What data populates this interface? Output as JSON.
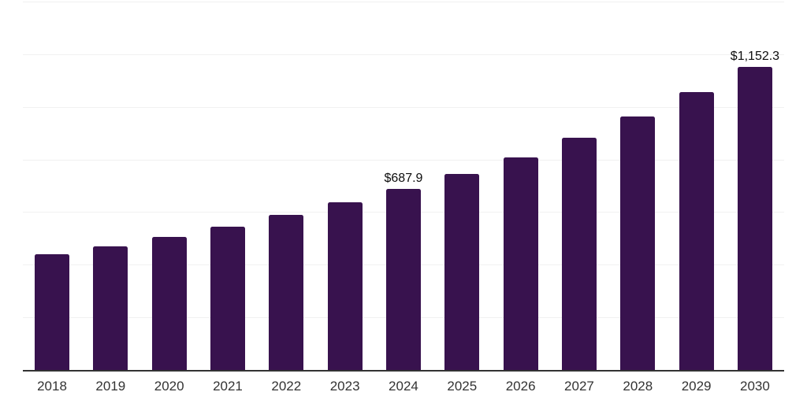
{
  "chart_data": {
    "type": "bar",
    "title": "",
    "xlabel": "",
    "ylabel": "",
    "categories": [
      "2018",
      "2019",
      "2020",
      "2021",
      "2022",
      "2023",
      "2024",
      "2025",
      "2026",
      "2027",
      "2028",
      "2029",
      "2030"
    ],
    "values": [
      441,
      471,
      507,
      543,
      588,
      637,
      687.9,
      744,
      809,
      882,
      963,
      1056,
      1152.3
    ],
    "data_labels": [
      "",
      "",
      "",
      "",
      "",
      "",
      "$687.9",
      "",
      "",
      "",
      "",
      "",
      "$1,152.3"
    ],
    "ylim": [
      0,
      1400
    ],
    "ytick_step": 200,
    "grid": true,
    "yaxis_tick_labels_visible": false,
    "legend_position": "none",
    "colors": {
      "bar": "#38124e",
      "grid": "#f1f1f1",
      "axis": "#333333",
      "tick_label": "#333333",
      "data_label": "#0d0d0d",
      "background": "#ffffff"
    }
  }
}
